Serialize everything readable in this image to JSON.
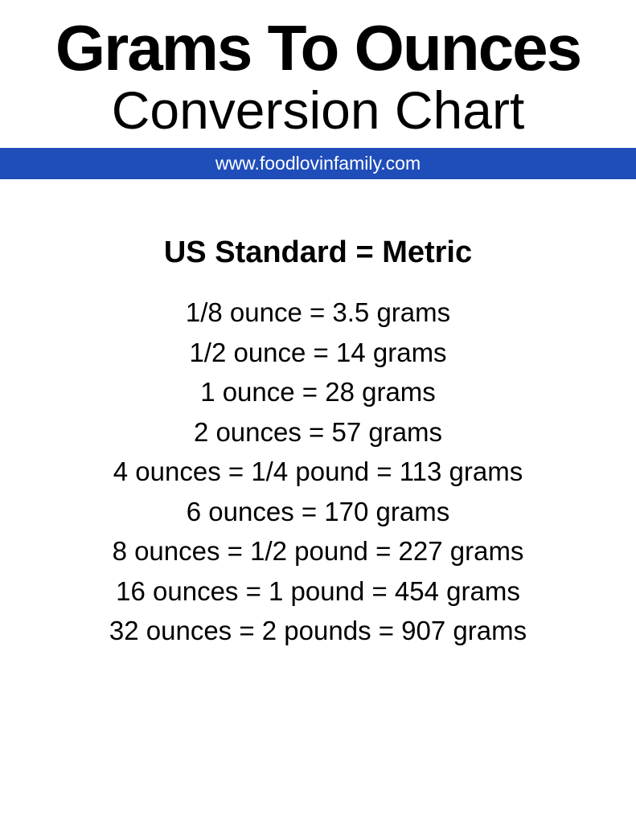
{
  "header": {
    "title_line_1": "Grams To Ounces",
    "title_line_2": "Conversion Chart",
    "url": "www.foodlovinfamily.com",
    "url_bar_color": "#1f4db9",
    "url_text_color": "#ffffff"
  },
  "subheading": "US Standard = Metric",
  "conversions": [
    "1/8 ounce = 3.5 grams",
    "1/2 ounce = 14 grams",
    "1 ounce = 28 grams",
    "2 ounces = 57 grams",
    "4 ounces = 1/4 pound = 113 grams",
    "6 ounces = 170 grams",
    "8 ounces = 1/2 pound = 227 grams",
    "16 ounces = 1 pound = 454 grams",
    "32 ounces = 2 pounds = 907 grams"
  ],
  "styling": {
    "background_color": "#ffffff",
    "text_color": "#000000",
    "title_fontsize": 80,
    "title_weight": 900,
    "subtitle_fontsize": 66,
    "subtitle_weight": 400,
    "url_fontsize": 23,
    "subheading_fontsize": 38,
    "subheading_weight": 700,
    "conversion_fontsize": 33,
    "conversion_weight": 400
  }
}
